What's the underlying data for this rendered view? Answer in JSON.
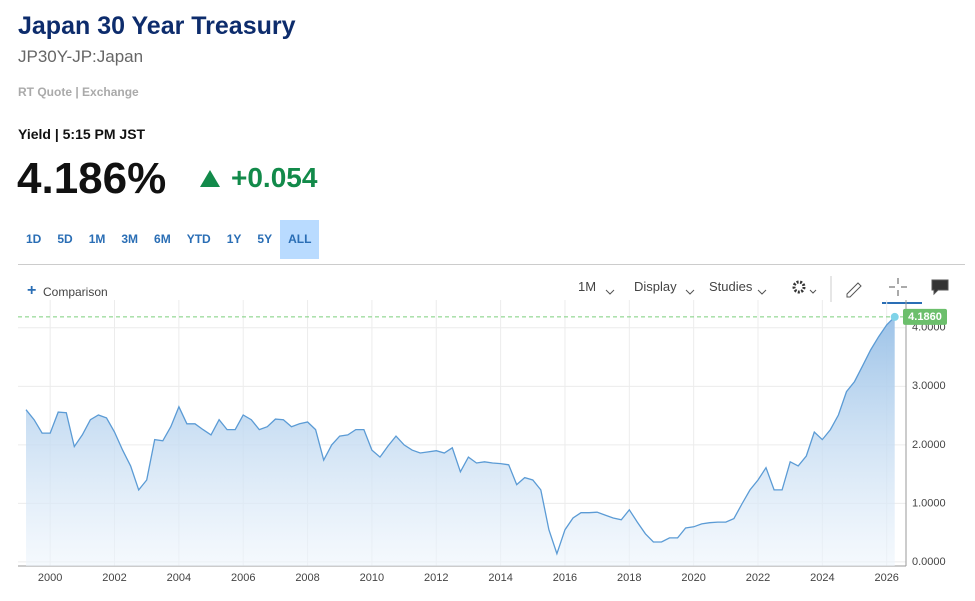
{
  "header": {
    "title": "Japan 30 Year Treasury",
    "symbol": "JP30Y-JP:Japan",
    "source": "RT Quote | Exchange"
  },
  "quote": {
    "label": "Yield | 5:15 PM JST",
    "price": "4.186%",
    "change": "+0.054"
  },
  "range_buttons": {
    "items": [
      "1D",
      "5D",
      "1M",
      "3M",
      "6M",
      "YTD",
      "1Y",
      "5Y",
      "ALL"
    ],
    "active": 8
  },
  "toolbar": {
    "comparison": "Comparison",
    "interval": "1M",
    "display": "Display",
    "studies": "Studies"
  },
  "chart_data": {
    "type": "area",
    "color": "#5b9bd5",
    "x": [
      1999.25,
      1999.5,
      1999.75,
      2000,
      2000.25,
      2000.5,
      2000.75,
      2001,
      2001.25,
      2001.5,
      2001.75,
      2002,
      2002.25,
      2002.5,
      2002.75,
      2003,
      2003.25,
      2003.5,
      2003.75,
      2004,
      2004.25,
      2004.5,
      2004.75,
      2005,
      2005.25,
      2005.5,
      2005.75,
      2006,
      2006.25,
      2006.5,
      2006.75,
      2007,
      2007.25,
      2007.5,
      2007.75,
      2008,
      2008.25,
      2008.5,
      2008.75,
      2009,
      2009.25,
      2009.5,
      2009.75,
      2010,
      2010.25,
      2010.5,
      2010.75,
      2011,
      2011.25,
      2011.5,
      2011.75,
      2012,
      2012.25,
      2012.5,
      2012.75,
      2013,
      2013.25,
      2013.5,
      2013.75,
      2014,
      2014.25,
      2014.5,
      2014.75,
      2015,
      2015.25,
      2015.5,
      2015.75,
      2016,
      2016.25,
      2016.5,
      2016.75,
      2017,
      2017.25,
      2017.5,
      2017.75,
      2018,
      2018.25,
      2018.5,
      2018.75,
      2019,
      2019.25,
      2019.5,
      2019.75,
      2020,
      2020.25,
      2020.5,
      2020.75,
      2021,
      2021.25,
      2021.5,
      2021.75,
      2022,
      2022.25,
      2022.5,
      2022.75,
      2023,
      2023.25,
      2023.5,
      2023.75,
      2024,
      2024.25,
      2024.5,
      2024.75,
      2025,
      2025.25,
      2025.5,
      2025.75,
      2026,
      2026.25
    ],
    "values": [
      2.6,
      2.43,
      2.2,
      2.2,
      2.56,
      2.55,
      1.97,
      2.17,
      2.43,
      2.51,
      2.46,
      2.22,
      1.91,
      1.64,
      1.23,
      1.4,
      2.09,
      2.07,
      2.31,
      2.65,
      2.36,
      2.36,
      2.26,
      2.17,
      2.43,
      2.26,
      2.26,
      2.51,
      2.43,
      2.26,
      2.31,
      2.44,
      2.43,
      2.31,
      2.36,
      2.39,
      2.26,
      1.74,
      2.0,
      2.15,
      2.17,
      2.26,
      2.26,
      1.91,
      1.79,
      1.98,
      2.15,
      2.0,
      1.91,
      1.86,
      1.88,
      1.9,
      1.86,
      1.95,
      1.54,
      1.79,
      1.69,
      1.71,
      1.69,
      1.68,
      1.66,
      1.32,
      1.44,
      1.4,
      1.23,
      0.55,
      0.14,
      0.55,
      0.75,
      0.84,
      0.84,
      0.85,
      0.8,
      0.75,
      0.72,
      0.89,
      0.68,
      0.48,
      0.34,
      0.34,
      0.41,
      0.41,
      0.58,
      0.6,
      0.65,
      0.67,
      0.68,
      0.68,
      0.74,
      0.99,
      1.23,
      1.4,
      1.61,
      1.23,
      1.23,
      1.71,
      1.64,
      1.81,
      2.22,
      2.09,
      2.26,
      2.51,
      2.91,
      3.08,
      3.35,
      3.62,
      3.85,
      4.05,
      4.186
    ],
    "xlim": [
      1999.0,
      2026.6
    ],
    "xticks": [
      2000,
      2002,
      2004,
      2006,
      2008,
      2010,
      2012,
      2014,
      2016,
      2018,
      2020,
      2022,
      2024,
      2026
    ],
    "ylim": [
      -0.07,
      4.27
    ],
    "yticks": [
      {
        "value": 0,
        "label": "0.0000"
      },
      {
        "value": 1,
        "label": "1.0000"
      },
      {
        "value": 2,
        "label": "2.0000"
      },
      {
        "value": 3,
        "label": "3.0000"
      },
      {
        "value": 4,
        "label": "4.0000"
      }
    ],
    "last": {
      "value": 4.186,
      "label": "4.1860"
    },
    "grid": true
  }
}
